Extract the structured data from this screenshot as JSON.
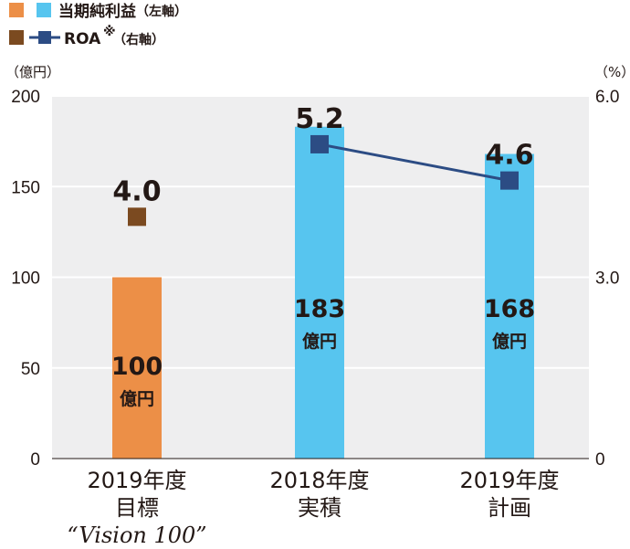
{
  "legend": {
    "net_income_label": "当期純利益",
    "net_income_axis": "（左軸）",
    "roa_label": "ROA",
    "roa_mark": "※",
    "roa_axis": "（右軸）"
  },
  "axes": {
    "left_unit": "（億円）",
    "right_unit": "（%）",
    "left_ticks": [
      "0",
      "50",
      "100",
      "150",
      "200"
    ],
    "right_ticks": [
      "0",
      "3.0",
      "6.0"
    ]
  },
  "colors": {
    "target_bar": "#ec8f47",
    "actual_bar": "#57c5ef",
    "target_marker": "#7b4a20",
    "roa_line": "#2c4c84",
    "plot_bg": "#eeeeef"
  },
  "chart_data": {
    "type": "bar",
    "categories": [
      {
        "line1": "2019年度",
        "line2": "目標",
        "line3": "“Vision 100”"
      },
      {
        "line1": "2018年度",
        "line2": "実積",
        "line3": ""
      },
      {
        "line1": "2019年度",
        "line2": "計画",
        "line3": ""
      }
    ],
    "series": [
      {
        "name": "当期純利益",
        "axis": "left",
        "values": [
          100,
          183,
          168
        ],
        "value_labels": [
          "100",
          "183",
          "168"
        ],
        "unit_label": "億円"
      },
      {
        "name": "ROA",
        "axis": "right",
        "values": [
          4.0,
          5.2,
          4.6
        ],
        "value_labels": [
          "4.0",
          "5.2",
          "4.6"
        ],
        "connected": [
          false,
          true,
          true
        ]
      }
    ],
    "ylim_left": [
      0,
      200
    ],
    "ylim_right": [
      0,
      6.0
    ],
    "grid": true,
    "legend_position": "top-left"
  }
}
